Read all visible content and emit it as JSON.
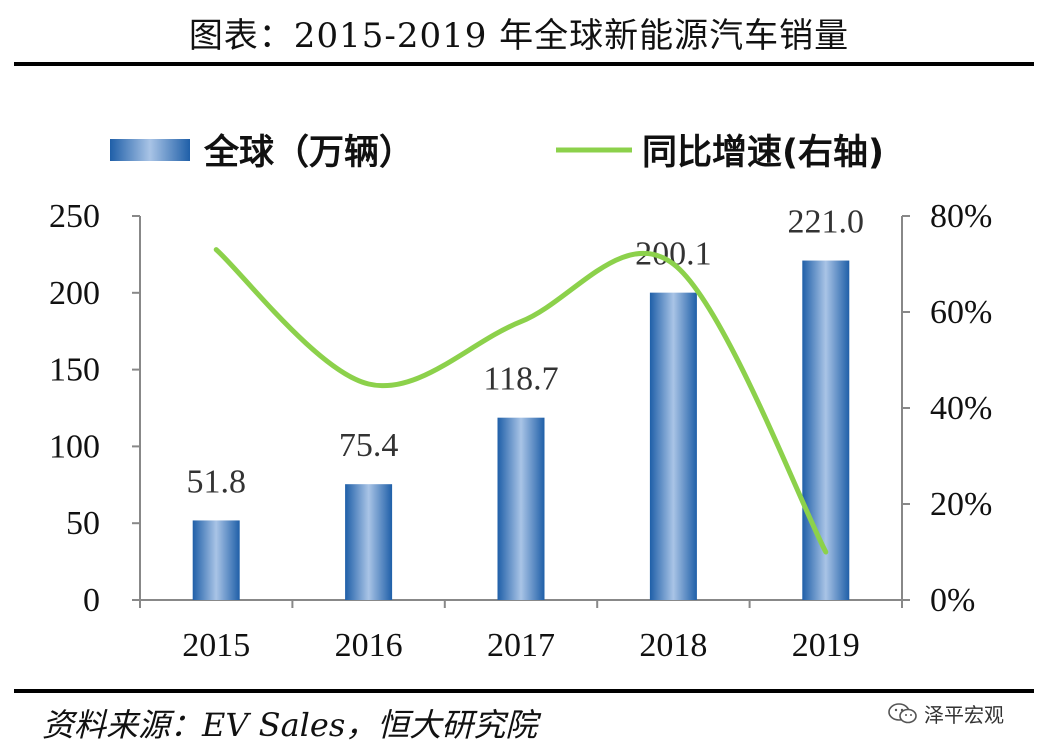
{
  "header": {
    "title": "图表：2015-2019 年全球新能源汽车销量"
  },
  "footer": {
    "source": "资料来源：EV Sales，恒大研究院",
    "watermark": "泽平宏观"
  },
  "chart_data": {
    "type": "bar",
    "categories": [
      "2015",
      "2016",
      "2017",
      "2018",
      "2019"
    ],
    "series": [
      {
        "name": "全球（万辆）",
        "type": "bar",
        "axis": "left",
        "values": [
          51.8,
          75.4,
          118.7,
          200.1,
          221.0
        ],
        "data_labels": [
          "51.8",
          "75.4",
          "118.7",
          "200.1",
          "221.0"
        ],
        "color": "#2E75B6"
      },
      {
        "name": "同比增速(右轴)",
        "type": "line",
        "axis": "right",
        "values": [
          0.73,
          0.45,
          0.58,
          0.7,
          0.1
        ],
        "color": "#8CD14B"
      }
    ],
    "y_left": {
      "ylim": [
        0,
        250
      ],
      "ticks": [
        "0",
        "50",
        "100",
        "150",
        "200",
        "250"
      ]
    },
    "y_right": {
      "ylim": [
        0,
        0.8
      ],
      "ticks": [
        "0%",
        "20%",
        "40%",
        "60%",
        "80%"
      ]
    },
    "legend_position": "top",
    "grid": false
  }
}
